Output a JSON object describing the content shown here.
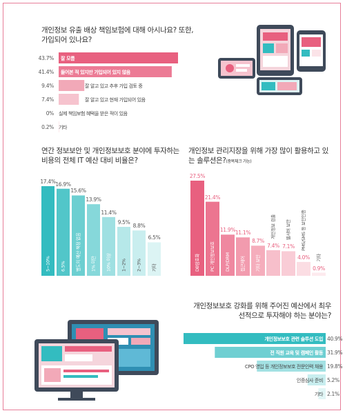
{
  "chart_data": [
    {
      "type": "bar",
      "orientation": "horizontal",
      "title": "개인정보 유출 배상 책임보험에 대해 아시나요? 또한, 가입되어 있나요?",
      "categories": [
        "잘 모름",
        "들어본 적 있지만 가입되어 있지 않음",
        "잘 알고 있고 추후 가입 검토 중",
        "잘 알고 있고 현재 가입되어 있음",
        "실제 책임보험 혜택을 받은 적이 있음",
        "기타"
      ],
      "values": [
        43.7,
        41.4,
        9.4,
        7.4,
        0,
        0.2
      ],
      "value_labels": [
        "43.7%",
        "41.4%",
        "9.4%",
        "7.4%",
        "0%",
        "0.2%"
      ],
      "colors": [
        "#e8607f",
        "#ec7b95",
        "#f2a9b8",
        "#f6c3ce",
        "#fbe3e8",
        "#fbe3e8"
      ]
    },
    {
      "type": "bar",
      "title": "연간 정보보안 및 개인정보보호 분야에 투자하는 비용의 전체 IT 예산 대비 비율은?",
      "categories": [
        "5~10%",
        "6.5%",
        "별도의 예산 책정 없음",
        "1% 미만",
        "10% 이상",
        "1~2%",
        "2~3%",
        "기타"
      ],
      "values": [
        17.4,
        16.9,
        15.6,
        13.9,
        11.4,
        9.5,
        8.8,
        6.5
      ],
      "value_labels": [
        "17.4%",
        "16.9%",
        "15.6%",
        "13.9%",
        "11.4%",
        "9.5%",
        "8.8%",
        "6.5%"
      ],
      "colors": [
        "#33bcc0",
        "#52c6c9",
        "#6ccfd1",
        "#86d8da",
        "#9fe0e2",
        "#b6e8e9",
        "#c9eeef",
        "#dcf4f4"
      ]
    },
    {
      "type": "bar",
      "title": "개인정보 관리지장을 위해 가장 많이 활용하고 있는 솔루션은?",
      "title_note": "(중복체크 가능)",
      "categories": [
        "DB암호화",
        "PC 개인정보보호",
        "DLP/DRM",
        "접근제어",
        "기타 보안",
        "개인정보 검출",
        "웹서버 보안",
        "PMS/SMS 등 보안인증",
        "기타"
      ],
      "values": [
        27.5,
        21.4,
        11.9,
        11.1,
        8.7,
        7.4,
        7.1,
        4.0,
        0.9
      ],
      "value_labels": [
        "27.5%",
        "21.4%",
        "11.9%",
        "11.1%",
        "8.7%",
        "7.4%",
        "7.1%",
        "4.0%",
        "0.9%"
      ],
      "colors": [
        "#e8607f",
        "#ec7590",
        "#ef88a0",
        "#f29bae",
        "#f5adbc",
        "#f7bfcb",
        "#f9ccd6",
        "#fbdde3",
        "#fdeaee"
      ]
    },
    {
      "type": "bar",
      "orientation": "horizontal",
      "title": "개인정보보호 강화를 위해 주어진 예산에서 최우선적으로 투자해야 하는 분야는?",
      "categories": [
        "개인정보보호 관련 솔루션 도입",
        "전 직원 교육 및 캠페인 활동",
        "CPO 영입 등 개인정보보호 전문인력 채용",
        "인증심사 준비",
        "기타"
      ],
      "values": [
        40.9,
        31.9,
        19.8,
        5.2,
        2.1
      ],
      "value_labels": [
        "40.9%",
        "31.9%",
        "19.8%",
        "5.2%",
        "2.1%"
      ],
      "colors": [
        "#33bcc0",
        "#6fcfd2",
        "#a3e1e3",
        "#c8eeef",
        "#e1f6f6"
      ]
    }
  ]
}
